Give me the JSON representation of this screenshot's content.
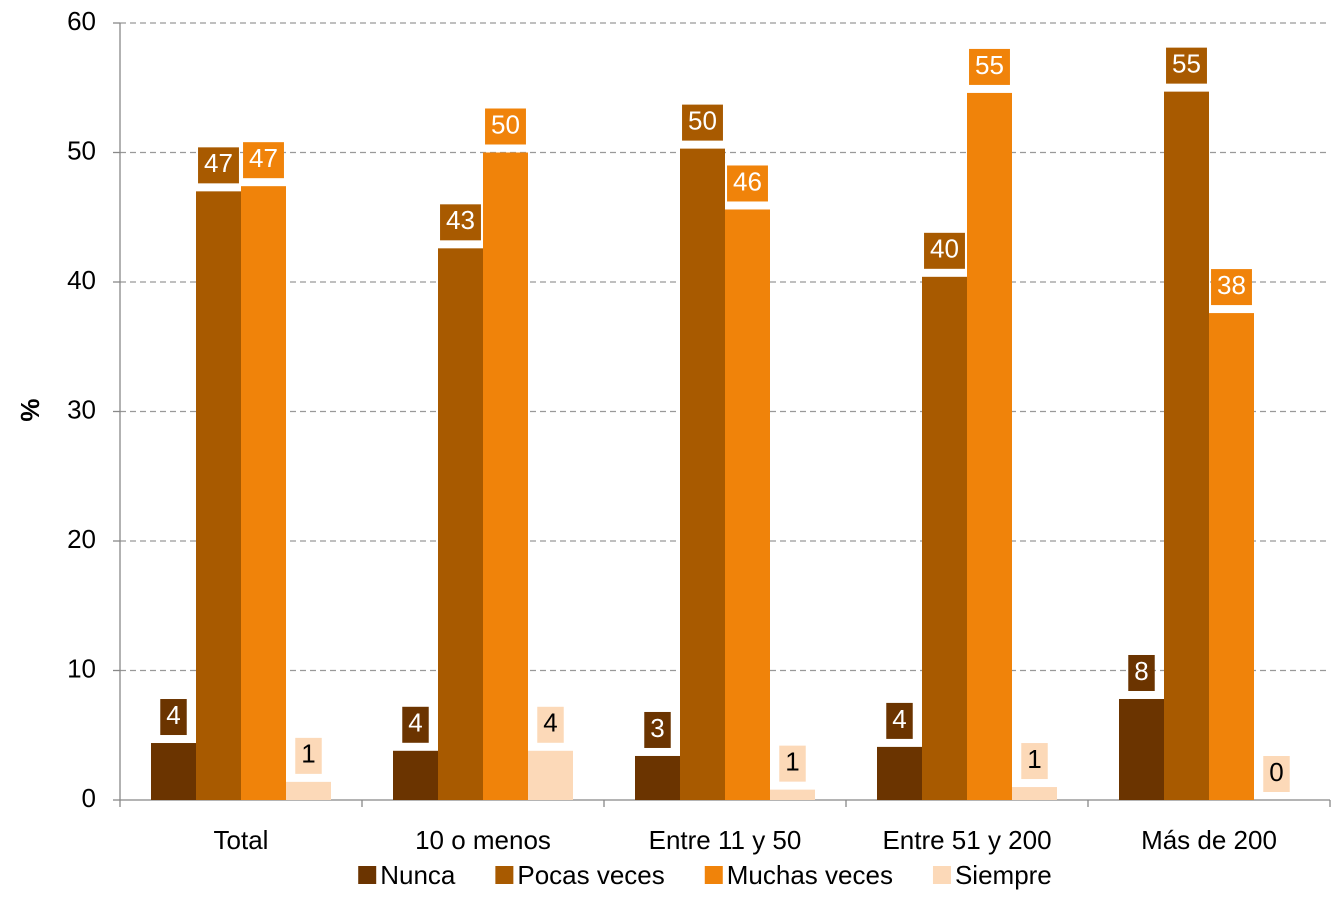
{
  "chart_data": {
    "type": "bar",
    "y_label": "%",
    "categories": [
      "Total",
      "10  o menos",
      "Entre 11 y 50",
      "Entre 51 y 200",
      "Más de 200"
    ],
    "series": [
      {
        "name": "Nunca",
        "color": "#6b3400",
        "values": [
          4.4,
          3.8,
          3.4,
          4.1,
          7.8
        ],
        "value_labels": [
          "4",
          "4",
          "3",
          "4",
          "8"
        ]
      },
      {
        "name": "Pocas veces",
        "color": "#a85a00",
        "values": [
          47.0,
          42.6,
          50.3,
          40.4,
          54.7
        ],
        "value_labels": [
          "47",
          "43",
          "50",
          "40",
          "55"
        ]
      },
      {
        "name": "Muchas veces",
        "color": "#f0830a",
        "values": [
          47.4,
          50.0,
          45.6,
          54.6,
          37.6
        ],
        "value_labels": [
          "47",
          "50",
          "46",
          "55",
          "38"
        ]
      },
      {
        "name": "Siempre",
        "color": "#fcd9b8",
        "values": [
          1.4,
          3.8,
          0.8,
          1.0,
          0
        ],
        "value_labels": [
          "1",
          "4",
          "1",
          "1",
          "0"
        ]
      }
    ],
    "ylim": [
      0,
      60
    ],
    "yticks": [
      0,
      10,
      20,
      30,
      40,
      50,
      60
    ],
    "grid": true,
    "legend": "bottom"
  }
}
